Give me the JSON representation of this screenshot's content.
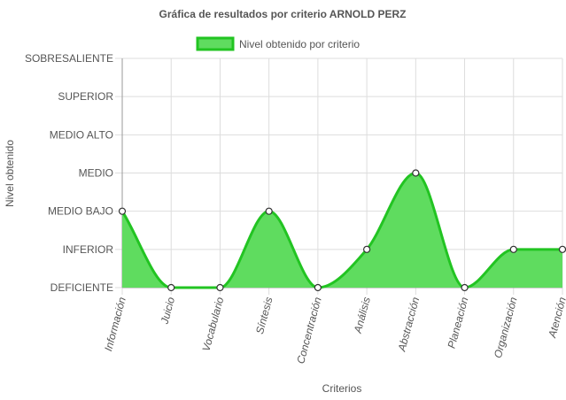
{
  "chart_data": {
    "type": "area",
    "title": "Gráfica de resultados por criterio ARNOLD PERZ",
    "xlabel": "Criterios",
    "ylabel": "Nivel obtenido",
    "categories": [
      "Información",
      "Juicio",
      "Vocabulario",
      "Síntesis",
      "Concentración",
      "Análisis",
      "Abstracción",
      "Planeación",
      "Organización",
      "Atención"
    ],
    "y_levels": [
      "DEFICIENTE",
      "INFERIOR",
      "MEDIO BAJO",
      "MEDIO",
      "MEDIO ALTO",
      "SUPERIOR",
      "SOBRESALIENTE"
    ],
    "series": [
      {
        "name": "Nivel obtenido por criterio",
        "values": [
          2,
          0,
          0,
          2,
          0,
          1,
          3,
          0,
          1,
          1
        ]
      }
    ],
    "ylim": [
      0,
      6
    ],
    "grid": true,
    "legend_position": "top",
    "colors": {
      "fill": "#5fdc5f",
      "stroke": "#22c422",
      "grid": "#dddddd",
      "point_fill": "#ffffff",
      "point_stroke": "#333333"
    }
  }
}
